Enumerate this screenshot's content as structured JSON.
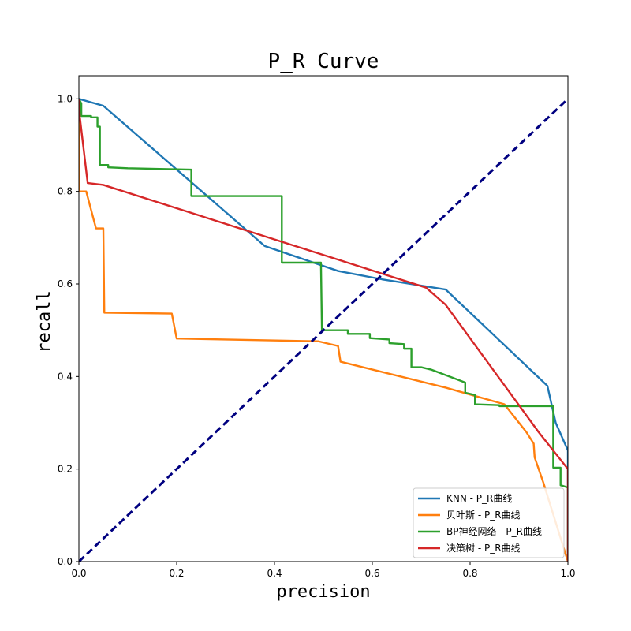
{
  "chart_data": {
    "type": "line",
    "title": "P_R Curve",
    "xlabel": "precision",
    "ylabel": "recall",
    "xlim": [
      0.0,
      1.0
    ],
    "ylim": [
      0.0,
      1.05
    ],
    "xticks": [
      "0.0",
      "0.2",
      "0.4",
      "0.6",
      "0.8",
      "1.0"
    ],
    "yticks": [
      "0.0",
      "0.2",
      "0.4",
      "0.6",
      "0.8",
      "1.0"
    ],
    "grid": false,
    "legend_position": "lower-right",
    "series": [
      {
        "name": "KNN - P_R曲线",
        "color": "#1f77b4",
        "points": [
          [
            0.0,
            1.0
          ],
          [
            0.05,
            0.985
          ],
          [
            0.38,
            0.682
          ],
          [
            0.53,
            0.628
          ],
          [
            0.62,
            0.61
          ],
          [
            0.75,
            0.588
          ],
          [
            0.958,
            0.38
          ],
          [
            0.975,
            0.3
          ],
          [
            1.0,
            0.24
          ],
          [
            1.0,
            0.0
          ]
        ]
      },
      {
        "name": "贝叶斯 - P_R曲线",
        "color": "#ff7f0e",
        "points": [
          [
            0.0,
            1.0
          ],
          [
            0.0,
            0.8
          ],
          [
            0.015,
            0.8
          ],
          [
            0.035,
            0.72
          ],
          [
            0.05,
            0.72
          ],
          [
            0.052,
            0.538
          ],
          [
            0.19,
            0.536
          ],
          [
            0.2,
            0.482
          ],
          [
            0.49,
            0.476
          ],
          [
            0.53,
            0.466
          ],
          [
            0.535,
            0.432
          ],
          [
            0.75,
            0.376
          ],
          [
            0.87,
            0.34
          ],
          [
            0.915,
            0.28
          ],
          [
            0.93,
            0.255
          ],
          [
            0.932,
            0.225
          ],
          [
            0.95,
            0.17
          ],
          [
            1.0,
            0.0
          ]
        ]
      },
      {
        "name": "BP神经网络 - P_R曲线",
        "color": "#2ca02c",
        "points": [
          [
            0.0,
            1.0
          ],
          [
            0.005,
            0.99
          ],
          [
            0.005,
            0.963
          ],
          [
            0.025,
            0.963
          ],
          [
            0.025,
            0.96
          ],
          [
            0.038,
            0.96
          ],
          [
            0.038,
            0.94
          ],
          [
            0.043,
            0.94
          ],
          [
            0.043,
            0.857
          ],
          [
            0.06,
            0.857
          ],
          [
            0.06,
            0.852
          ],
          [
            0.1,
            0.85
          ],
          [
            0.23,
            0.847
          ],
          [
            0.23,
            0.79
          ],
          [
            0.415,
            0.79
          ],
          [
            0.415,
            0.646
          ],
          [
            0.495,
            0.646
          ],
          [
            0.497,
            0.5
          ],
          [
            0.55,
            0.5
          ],
          [
            0.55,
            0.492
          ],
          [
            0.595,
            0.492
          ],
          [
            0.595,
            0.483
          ],
          [
            0.635,
            0.48
          ],
          [
            0.635,
            0.472
          ],
          [
            0.665,
            0.47
          ],
          [
            0.665,
            0.46
          ],
          [
            0.68,
            0.46
          ],
          [
            0.68,
            0.42
          ],
          [
            0.7,
            0.42
          ],
          [
            0.72,
            0.415
          ],
          [
            0.77,
            0.395
          ],
          [
            0.79,
            0.387
          ],
          [
            0.79,
            0.365
          ],
          [
            0.81,
            0.36
          ],
          [
            0.81,
            0.34
          ],
          [
            0.86,
            0.338
          ],
          [
            0.86,
            0.336
          ],
          [
            0.97,
            0.336
          ],
          [
            0.97,
            0.203
          ],
          [
            0.985,
            0.203
          ],
          [
            0.985,
            0.165
          ],
          [
            1.0,
            0.16
          ],
          [
            1.0,
            0.0
          ]
        ]
      },
      {
        "name": "决策树 - P_R曲线",
        "color": "#d62728",
        "points": [
          [
            0.0,
            1.0
          ],
          [
            0.002,
            0.96
          ],
          [
            0.018,
            0.818
          ],
          [
            0.05,
            0.814
          ],
          [
            0.71,
            0.592
          ],
          [
            0.75,
            0.555
          ],
          [
            0.94,
            0.28
          ],
          [
            1.0,
            0.2
          ],
          [
            1.0,
            0.0
          ]
        ]
      },
      {
        "name": "",
        "color": "#000080",
        "dashed": true,
        "points": [
          [
            0.0,
            0.0
          ],
          [
            1.0,
            1.0
          ]
        ]
      }
    ]
  }
}
